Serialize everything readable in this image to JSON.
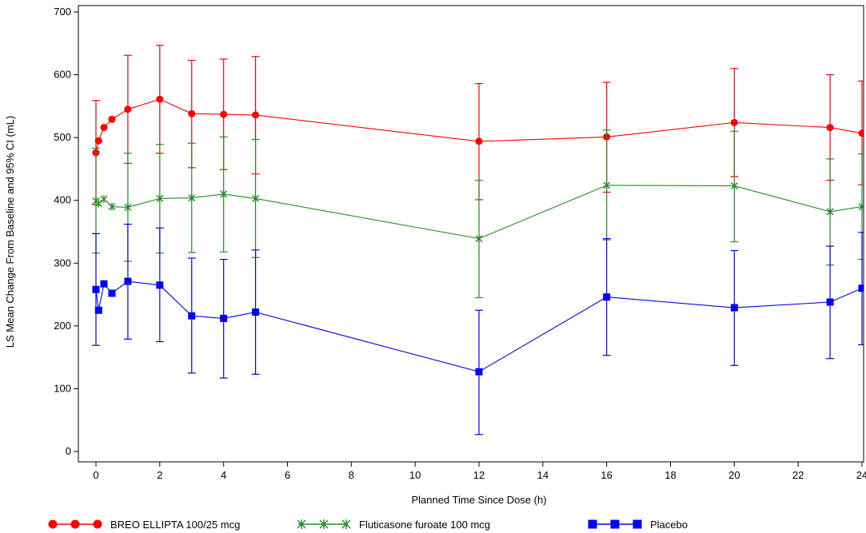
{
  "chart_data": {
    "type": "line",
    "title": "",
    "xlabel": "Planned Time Since Dose (h)",
    "ylabel": "LS Mean Change From Baseline and 95% CI (mL)",
    "xlim": [
      0,
      24
    ],
    "ylim": [
      0,
      700
    ],
    "xticks": [
      0,
      2,
      4,
      6,
      8,
      10,
      12,
      14,
      16,
      18,
      20,
      22,
      24
    ],
    "yticks": [
      0,
      100,
      200,
      300,
      400,
      500,
      600,
      700
    ],
    "grid": false,
    "legend_position": "bottom",
    "series": [
      {
        "name": "BREO ELLIPTA 100/25 mcg",
        "color": "#ff0000",
        "marker": "circle",
        "points": [
          {
            "x": 0,
            "y": 476,
            "lo": 393,
            "hi": 559
          },
          {
            "x": 0.083,
            "y": 495
          },
          {
            "x": 0.25,
            "y": 516
          },
          {
            "x": 0.5,
            "y": 529
          },
          {
            "x": 1,
            "y": 545,
            "lo": 459,
            "hi": 631
          },
          {
            "x": 2,
            "y": 561,
            "lo": 475,
            "hi": 647
          },
          {
            "x": 3,
            "y": 538,
            "lo": 452,
            "hi": 623
          },
          {
            "x": 4,
            "y": 537,
            "lo": 449,
            "hi": 625
          },
          {
            "x": 5,
            "y": 536,
            "lo": 442,
            "hi": 629
          },
          {
            "x": 12,
            "y": 494,
            "lo": 401,
            "hi": 586
          },
          {
            "x": 16,
            "y": 501,
            "lo": 413,
            "hi": 588
          },
          {
            "x": 20,
            "y": 524,
            "lo": 438,
            "hi": 610
          },
          {
            "x": 23,
            "y": 516,
            "lo": 432,
            "hi": 600
          },
          {
            "x": 24,
            "y": 507,
            "lo": 425,
            "hi": 590
          }
        ]
      },
      {
        "name": "Fluticasone furoate 100 mcg",
        "color": "#228b22",
        "marker": "x",
        "points": [
          {
            "x": 0,
            "y": 399,
            "lo": 316,
            "hi": 483
          },
          {
            "x": 0.083,
            "y": 395
          },
          {
            "x": 0.25,
            "y": 402
          },
          {
            "x": 0.5,
            "y": 390
          },
          {
            "x": 1,
            "y": 389,
            "lo": 303,
            "hi": 475
          },
          {
            "x": 2,
            "y": 403,
            "lo": 316,
            "hi": 489
          },
          {
            "x": 3,
            "y": 404,
            "lo": 317,
            "hi": 491
          },
          {
            "x": 4,
            "y": 410,
            "lo": 318,
            "hi": 501
          },
          {
            "x": 5,
            "y": 403,
            "lo": 309,
            "hi": 497
          },
          {
            "x": 12,
            "y": 339,
            "lo": 245,
            "hi": 432
          },
          {
            "x": 16,
            "y": 424,
            "lo": 337,
            "hi": 512
          },
          {
            "x": 20,
            "y": 423,
            "lo": 334,
            "hi": 510
          },
          {
            "x": 23,
            "y": 382,
            "lo": 297,
            "hi": 466
          },
          {
            "x": 24,
            "y": 390,
            "lo": 306,
            "hi": 474
          }
        ]
      },
      {
        "name": "Placebo",
        "color": "#0000ff",
        "marker": "square",
        "points": [
          {
            "x": 0,
            "y": 258,
            "lo": 169,
            "hi": 347
          },
          {
            "x": 0.083,
            "y": 225
          },
          {
            "x": 0.25,
            "y": 267
          },
          {
            "x": 0.5,
            "y": 252
          },
          {
            "x": 1,
            "y": 271,
            "lo": 179,
            "hi": 362
          },
          {
            "x": 2,
            "y": 265,
            "lo": 175,
            "hi": 356
          },
          {
            "x": 3,
            "y": 216,
            "lo": 125,
            "hi": 308
          },
          {
            "x": 4,
            "y": 212,
            "lo": 117,
            "hi": 306
          },
          {
            "x": 5,
            "y": 222,
            "lo": 123,
            "hi": 321
          },
          {
            "x": 12,
            "y": 127,
            "lo": 27,
            "hi": 225
          },
          {
            "x": 16,
            "y": 246,
            "lo": 153,
            "hi": 339
          },
          {
            "x": 20,
            "y": 229,
            "lo": 137,
            "hi": 320
          },
          {
            "x": 23,
            "y": 238,
            "lo": 148,
            "hi": 327
          },
          {
            "x": 24,
            "y": 260,
            "lo": 170,
            "hi": 349
          }
        ]
      }
    ]
  }
}
